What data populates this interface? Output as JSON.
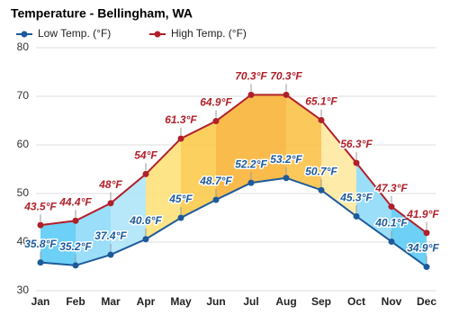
{
  "chart_data": {
    "type": "line",
    "title": "Temperature - Bellingham, WA",
    "categories": [
      "Jan",
      "Feb",
      "Mar",
      "Apr",
      "May",
      "Jun",
      "Jul",
      "Aug",
      "Sep",
      "Oct",
      "Nov",
      "Dec"
    ],
    "series": [
      {
        "name": "Low Temp. (°F)",
        "color": "#1d5a9a",
        "values": [
          35.8,
          35.2,
          37.4,
          40.6,
          45,
          48.7,
          52.2,
          53.2,
          50.7,
          45.3,
          40.1,
          34.9
        ],
        "value_labels": [
          "35.8°F",
          "35.2°F",
          "37.4°F",
          "40.6°F",
          "45°F",
          "48.7°F",
          "52.2°F",
          "53.2°F",
          "50.7°F",
          "45.3°F",
          "40.1°F",
          "34.9°F"
        ]
      },
      {
        "name": "High Temp. (°F)",
        "color": "#b0202a",
        "values": [
          43.5,
          44.4,
          48,
          54,
          61.3,
          64.9,
          70.3,
          70.3,
          65.1,
          56.3,
          47.3,
          41.9
        ],
        "value_labels": [
          "43.5°F",
          "44.4°F",
          "48°F",
          "54°F",
          "61.3°F",
          "64.9°F",
          "70.3°F",
          "70.3°F",
          "65.1°F",
          "56.3°F",
          "47.3°F",
          "41.9°F"
        ]
      }
    ],
    "fill_colors": [
      "#5dcbf5",
      "#8fdaf8",
      "#aee6fa",
      "#fde17a",
      "#fccb4e",
      "#f9b43a",
      "#f9b43a",
      "#fbc24a",
      "#fee9a0",
      "#8fdaf8",
      "#5dcbf5"
    ],
    "ylim": [
      30,
      80
    ],
    "yticks": [
      30,
      40,
      50,
      60,
      70,
      80
    ],
    "grid": true,
    "legend": "top-left"
  }
}
